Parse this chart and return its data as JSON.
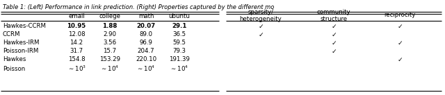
{
  "left_col_headers": [
    "",
    "email",
    "college",
    "math",
    "ubuntu"
  ],
  "left_rows": [
    [
      "Hawkes-CCRM",
      "10.95",
      "1.88",
      "20.07",
      "29.1"
    ],
    [
      "CCRM",
      "12.08",
      "2.90",
      "89.0",
      "36.5"
    ],
    [
      "Hawkes-IRM",
      "14.2",
      "3.56",
      "96.9",
      "59.5"
    ],
    [
      "Poisson-IRM",
      "31.7",
      "15.7",
      "204.7",
      "79.3"
    ],
    [
      "Hawkes",
      "154.8",
      "153.29",
      "220.10",
      "191.39"
    ],
    [
      "Poisson",
      "~10^3",
      "~10^4",
      "~10^4",
      "~10^4"
    ]
  ],
  "bold_row": 0,
  "right_col_headers": [
    "sparsity/\nheterogeneity",
    "community\nstructure",
    "reciprocity"
  ],
  "right_rows": [
    [
      true,
      true,
      true
    ],
    [
      true,
      true,
      false
    ],
    [
      false,
      true,
      true
    ],
    [
      false,
      true,
      false
    ],
    [
      false,
      false,
      true
    ],
    [
      false,
      false,
      false
    ]
  ],
  "title": "Table 1: (Left) Performance in link prediction. (Right) Properties captured by the different mo",
  "bg": "#ffffff",
  "fg": "#000000"
}
